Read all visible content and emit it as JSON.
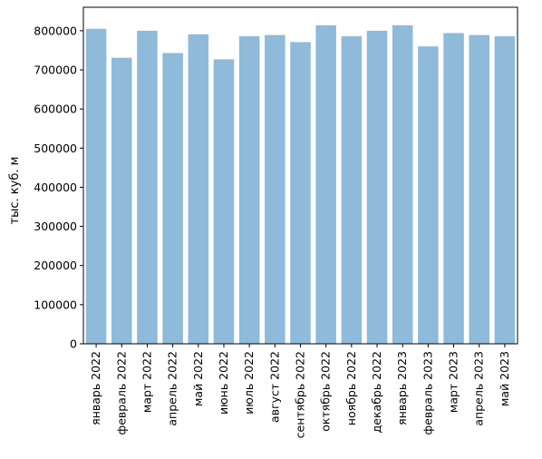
{
  "chart_data": {
    "type": "bar",
    "title": "",
    "xlabel": "",
    "ylabel": "тыс. куб. м",
    "ylim": [
      0,
      860000
    ],
    "yticks": [
      0,
      100000,
      200000,
      300000,
      400000,
      500000,
      600000,
      700000,
      800000
    ],
    "grid": false,
    "bar_color": "#8fbad9",
    "categories": [
      "январь 2022",
      "февраль 2022",
      "март 2022",
      "апрель 2022",
      "май 2022",
      "июнь 2022",
      "июль 2022",
      "август 2022",
      "сентябрь 2022",
      "октябрь 2022",
      "ноябрь 2022",
      "декабрь 2022",
      "январь 2023",
      "февраль 2023",
      "март 2023",
      "апрель 2023",
      "май 2023"
    ],
    "values": [
      805000,
      731000,
      800000,
      743000,
      791000,
      727000,
      786000,
      789000,
      771000,
      814000,
      786000,
      800000,
      814000,
      760000,
      794000,
      789000,
      786000
    ]
  }
}
